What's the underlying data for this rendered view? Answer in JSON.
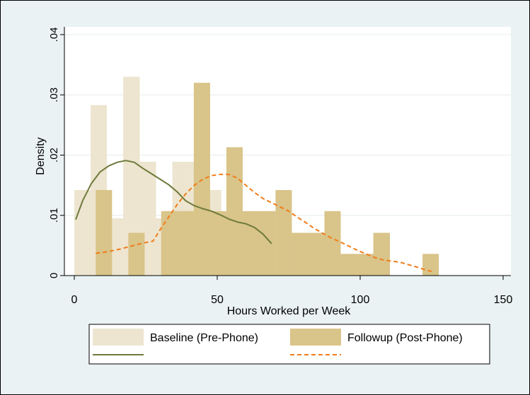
{
  "chart_data": {
    "type": "bar",
    "title": "",
    "xlabel": "Hours Worked per Week",
    "ylabel": "Density",
    "xlim": [
      0,
      150
    ],
    "ylim": [
      0,
      0.04
    ],
    "x_ticks": [
      0,
      50,
      100,
      150
    ],
    "y_ticks": [
      0,
      0.01,
      0.02,
      0.03,
      0.04
    ],
    "y_tick_labels": [
      "0",
      ".01",
      ".02",
      ".03",
      ".04"
    ],
    "grid": true,
    "legend_position": "bottom",
    "series": [
      {
        "name": "Baseline (Pre-Phone)",
        "kind": "histogram",
        "color": "#ede5cf",
        "bars": [
          {
            "x0": 0,
            "x1": 5.7,
            "y": 0.0142
          },
          {
            "x0": 5.7,
            "x1": 11.4,
            "y": 0.0283
          },
          {
            "x0": 11.4,
            "x1": 17.1,
            "y": 0.0095
          },
          {
            "x0": 17.1,
            "x1": 22.9,
            "y": 0.033
          },
          {
            "x0": 22.9,
            "x1": 28.6,
            "y": 0.0189
          },
          {
            "x0": 28.6,
            "x1": 34.3,
            "y": 0.0095
          },
          {
            "x0": 34.3,
            "x1": 40.0,
            "y": 0.0189
          },
          {
            "x0": 40.0,
            "x1": 45.7,
            "y": 0.0189
          },
          {
            "x0": 45.7,
            "x1": 51.4,
            "y": 0.0142
          },
          {
            "x0": 51.4,
            "x1": 57.1,
            "y": 0.0095
          },
          {
            "x0": 57.1,
            "x1": 62.9,
            "y": 0.0095
          },
          {
            "x0": 62.9,
            "x1": 68.6,
            "y": 0.0095
          }
        ]
      },
      {
        "name": "Followup (Post-Phone)",
        "kind": "histogram",
        "color": "#d9c489",
        "bars": [
          {
            "x0": 7.5,
            "x1": 13.2,
            "y": 0.0142
          },
          {
            "x0": 13.2,
            "x1": 18.9,
            "y": 0.0
          },
          {
            "x0": 18.9,
            "x1": 24.6,
            "y": 0.0071
          },
          {
            "x0": 24.6,
            "x1": 30.4,
            "y": 0.0
          },
          {
            "x0": 30.4,
            "x1": 36.1,
            "y": 0.0107
          },
          {
            "x0": 36.1,
            "x1": 41.8,
            "y": 0.0107
          },
          {
            "x0": 41.8,
            "x1": 47.5,
            "y": 0.032
          },
          {
            "x0": 47.5,
            "x1": 53.2,
            "y": 0.0107
          },
          {
            "x0": 53.2,
            "x1": 58.9,
            "y": 0.0213
          },
          {
            "x0": 58.9,
            "x1": 64.6,
            "y": 0.0107
          },
          {
            "x0": 64.6,
            "x1": 70.4,
            "y": 0.0107
          },
          {
            "x0": 70.4,
            "x1": 76.1,
            "y": 0.0142
          },
          {
            "x0": 76.1,
            "x1": 81.8,
            "y": 0.0071
          },
          {
            "x0": 81.8,
            "x1": 87.5,
            "y": 0.0071
          },
          {
            "x0": 87.5,
            "x1": 93.2,
            "y": 0.0107
          },
          {
            "x0": 93.2,
            "x1": 98.9,
            "y": 0.0036
          },
          {
            "x0": 98.9,
            "x1": 104.6,
            "y": 0.0036
          },
          {
            "x0": 104.6,
            "x1": 110.4,
            "y": 0.0071
          },
          {
            "x0": 110.4,
            "x1": 116.1,
            "y": 0.0
          },
          {
            "x0": 116.1,
            "x1": 121.8,
            "y": 0.0
          },
          {
            "x0": 121.8,
            "x1": 127.5,
            "y": 0.0036
          }
        ]
      },
      {
        "name": "",
        "kind": "line",
        "color": "#6e7a3c",
        "dash": "solid",
        "points": [
          [
            0.5,
            0.0093
          ],
          [
            3,
            0.0125
          ],
          [
            6,
            0.0153
          ],
          [
            9,
            0.0172
          ],
          [
            12,
            0.0182
          ],
          [
            15,
            0.0188
          ],
          [
            18,
            0.0191
          ],
          [
            21,
            0.0188
          ],
          [
            24,
            0.0178
          ],
          [
            27,
            0.0169
          ],
          [
            30,
            0.016
          ],
          [
            33,
            0.0151
          ],
          [
            36,
            0.0139
          ],
          [
            39,
            0.0124
          ],
          [
            42,
            0.0116
          ],
          [
            45,
            0.0111
          ],
          [
            48,
            0.0107
          ],
          [
            51,
            0.0101
          ],
          [
            54,
            0.0094
          ],
          [
            57,
            0.0089
          ],
          [
            60,
            0.0086
          ],
          [
            63,
            0.008
          ],
          [
            66,
            0.0069
          ],
          [
            69,
            0.0053
          ]
        ]
      },
      {
        "name": "",
        "kind": "line",
        "color": "#f07d1a",
        "dash": "dashed",
        "points": [
          [
            7.5,
            0.0037
          ],
          [
            12,
            0.004
          ],
          [
            16,
            0.0044
          ],
          [
            20,
            0.0049
          ],
          [
            24,
            0.0054
          ],
          [
            27.5,
            0.0057
          ],
          [
            30,
            0.0076
          ],
          [
            33,
            0.0097
          ],
          [
            36,
            0.0118
          ],
          [
            39,
            0.0136
          ],
          [
            42,
            0.015
          ],
          [
            45,
            0.016
          ],
          [
            48,
            0.0166
          ],
          [
            51,
            0.0168
          ],
          [
            54,
            0.0168
          ],
          [
            57,
            0.0162
          ],
          [
            60,
            0.015
          ],
          [
            63,
            0.0138
          ],
          [
            66,
            0.0128
          ],
          [
            69,
            0.0121
          ],
          [
            72,
            0.0114
          ],
          [
            75,
            0.0107
          ],
          [
            78,
            0.0097
          ],
          [
            81,
            0.0088
          ],
          [
            84,
            0.0078
          ],
          [
            87,
            0.007
          ],
          [
            90,
            0.0062
          ],
          [
            93,
            0.0056
          ],
          [
            96,
            0.0049
          ],
          [
            99,
            0.0042
          ],
          [
            102,
            0.0036
          ],
          [
            105,
            0.003
          ],
          [
            108,
            0.0026
          ],
          [
            111,
            0.0024
          ],
          [
            114,
            0.0022
          ],
          [
            117,
            0.0018
          ],
          [
            120,
            0.0014
          ],
          [
            123,
            0.0009
          ],
          [
            125,
            0.0007
          ]
        ]
      }
    ]
  }
}
